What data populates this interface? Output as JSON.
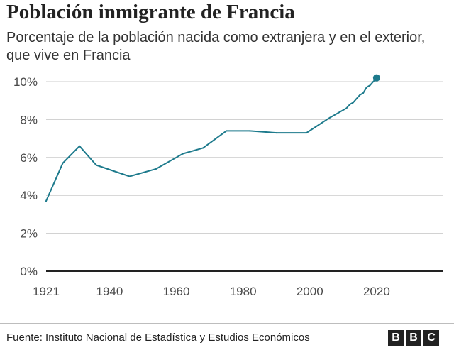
{
  "header": {
    "title": "Población inmigrante de Francia",
    "subtitle": "Porcentaje de la población nacida como extranjera y en el exterior, que vive en Francia"
  },
  "footer": {
    "source": "Fuente: Instituto Nacional de Estadística y Estudios Económicos",
    "logo_letters": [
      "B",
      "B",
      "C"
    ]
  },
  "colors": {
    "line": "#1d7a8c",
    "grid": "#cccccc",
    "baseline": "#222222"
  },
  "chart_data": {
    "type": "line",
    "title": "Población inmigrante de Francia",
    "subtitle": "Porcentaje de la población nacida como extranjera y en el exterior, que vive en Francia",
    "xlabel": "",
    "ylabel": "",
    "xlim": [
      1921,
      2040
    ],
    "ylim": [
      0,
      10
    ],
    "x_ticks": [
      1921,
      1940,
      1960,
      1980,
      2000,
      2020
    ],
    "y_ticks": [
      0,
      2,
      4,
      6,
      8,
      10
    ],
    "y_tick_labels": [
      "0%",
      "2%",
      "4%",
      "6%",
      "8%",
      "10%"
    ],
    "grid": true,
    "legend": "none",
    "series": [
      {
        "x": [
          1921,
          1926,
          1931,
          1936,
          1946,
          1954,
          1962,
          1968,
          1975,
          1982,
          1990,
          1999,
          2006,
          2011,
          2012,
          2013,
          2014,
          2015,
          2016,
          2017,
          2018,
          2019,
          2020
        ],
        "values": [
          3.7,
          5.7,
          6.6,
          5.6,
          5.0,
          5.4,
          6.2,
          6.5,
          7.4,
          7.4,
          7.3,
          7.3,
          8.1,
          8.6,
          8.8,
          8.9,
          9.1,
          9.3,
          9.4,
          9.7,
          9.8,
          10.0,
          10.2
        ],
        "end_marker": true
      }
    ]
  }
}
